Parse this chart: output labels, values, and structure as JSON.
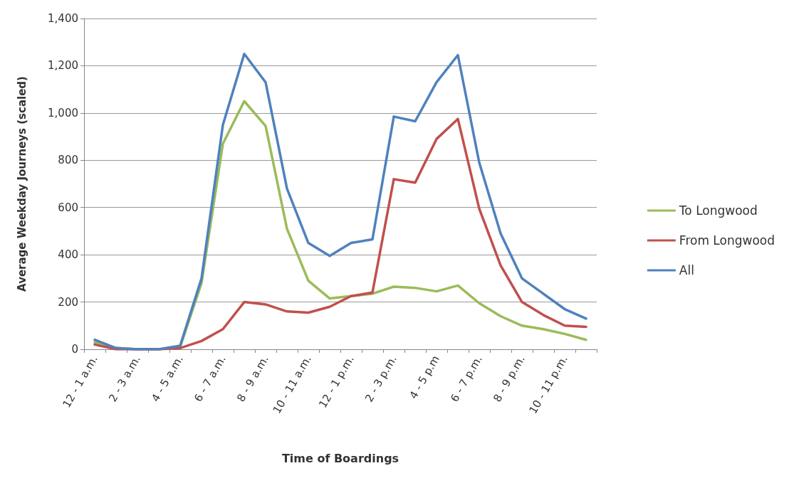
{
  "chart_data": {
    "type": "line",
    "xlabel": "Time of Boardings",
    "ylabel": "Average Weekday Journeys (scaled)",
    "categories": [
      "12 - 1 a.m.",
      null,
      "2 - 3 a.m.",
      null,
      "4 - 5 a.m.",
      null,
      "6 - 7 a.m.",
      null,
      "8 - 9 a.m.",
      null,
      "10 - 11 a.m.",
      null,
      "12 - 1 p.m.",
      null,
      "2 - 3 p.m.",
      null,
      "4 - 5 p.m",
      null,
      "6 - 7 p.m.",
      null,
      "8 - 9 p.m.",
      null,
      "10 - 11 p.m.",
      null
    ],
    "series": [
      {
        "name": "To Longwood",
        "color": "#9bbb59",
        "values": [
          30,
          5,
          0,
          0,
          10,
          280,
          870,
          1050,
          945,
          510,
          290,
          215,
          225,
          235,
          265,
          260,
          245,
          270,
          195,
          140,
          100,
          85,
          65,
          40
        ]
      },
      {
        "name": "From Longwood",
        "color": "#c0504d",
        "values": [
          20,
          0,
          0,
          0,
          5,
          35,
          85,
          200,
          190,
          160,
          155,
          180,
          225,
          240,
          720,
          705,
          890,
          975,
          595,
          355,
          200,
          145,
          100,
          95
        ]
      },
      {
        "name": "All",
        "color": "#4f81bd",
        "values": [
          40,
          5,
          0,
          0,
          15,
          300,
          950,
          1250,
          1130,
          680,
          450,
          395,
          450,
          465,
          985,
          965,
          1130,
          1245,
          790,
          490,
          300,
          235,
          170,
          130
        ]
      }
    ],
    "ylim": [
      0,
      1400
    ],
    "yticks": [
      0,
      200,
      400,
      600,
      800,
      {
        "value": 1000,
        "label": "1,000"
      },
      {
        "value": 1200,
        "label": "1,200"
      },
      {
        "value": 1400,
        "label": "1,400"
      }
    ],
    "grid": "y",
    "legend": "right",
    "marker": "none",
    "line_style": "solid"
  }
}
